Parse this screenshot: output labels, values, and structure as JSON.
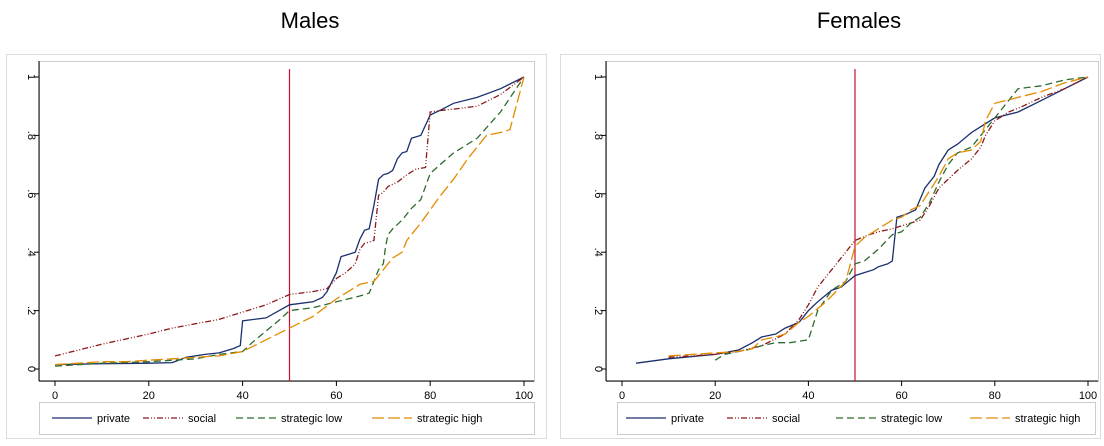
{
  "chart_data": [
    {
      "type": "line",
      "title": "Males",
      "xlim": [
        0,
        100
      ],
      "ylim": [
        0,
        1
      ],
      "xticks": [
        0,
        20,
        40,
        60,
        80,
        100
      ],
      "yticks": [
        0,
        0.2,
        0.4,
        0.6,
        0.8,
        1
      ],
      "xtick_labels": [
        "0",
        "20",
        "40",
        "60",
        "80",
        "100"
      ],
      "ytick_labels": [
        "0",
        ".2",
        ".4",
        ".6",
        ".8",
        "1"
      ],
      "reference_line_x": 50,
      "legend": "bottom",
      "series": [
        {
          "name": "private",
          "color": "#1a2f6e",
          "dash": "",
          "points": [
            [
              0,
              0.015
            ],
            [
              10,
              0.018
            ],
            [
              20,
              0.02
            ],
            [
              25,
              0.022
            ],
            [
              28,
              0.04
            ],
            [
              32,
              0.05
            ],
            [
              35,
              0.055
            ],
            [
              38,
              0.07
            ],
            [
              39.5,
              0.08
            ],
            [
              40,
              0.165
            ],
            [
              45,
              0.175
            ],
            [
              50,
              0.22
            ],
            [
              55,
              0.23
            ],
            [
              57,
              0.245
            ],
            [
              58,
              0.265
            ],
            [
              60,
              0.33
            ],
            [
              61,
              0.385
            ],
            [
              63,
              0.395
            ],
            [
              64,
              0.4
            ],
            [
              65,
              0.445
            ],
            [
              66,
              0.475
            ],
            [
              67,
              0.48
            ],
            [
              68,
              0.56
            ],
            [
              69,
              0.65
            ],
            [
              70,
              0.665
            ],
            [
              71,
              0.67
            ],
            [
              72,
              0.68
            ],
            [
              73,
              0.72
            ],
            [
              74,
              0.74
            ],
            [
              75,
              0.745
            ],
            [
              76,
              0.79
            ],
            [
              78,
              0.8
            ],
            [
              80,
              0.87
            ],
            [
              82,
              0.885
            ],
            [
              85,
              0.91
            ],
            [
              90,
              0.93
            ],
            [
              95,
              0.96
            ],
            [
              100,
              1.0
            ]
          ]
        },
        {
          "name": "social",
          "color": "#8b1a1a",
          "dash": "6,2,1,2,1,2",
          "points": [
            [
              0,
              0.045
            ],
            [
              10,
              0.085
            ],
            [
              20,
              0.12
            ],
            [
              25,
              0.14
            ],
            [
              30,
              0.155
            ],
            [
              35,
              0.17
            ],
            [
              40,
              0.195
            ],
            [
              45,
              0.22
            ],
            [
              50,
              0.255
            ],
            [
              55,
              0.265
            ],
            [
              58,
              0.275
            ],
            [
              60,
              0.31
            ],
            [
              62,
              0.33
            ],
            [
              64,
              0.36
            ],
            [
              65,
              0.41
            ],
            [
              66,
              0.43
            ],
            [
              67,
              0.435
            ],
            [
              68,
              0.44
            ],
            [
              69,
              0.595
            ],
            [
              70,
              0.605
            ],
            [
              71,
              0.625
            ],
            [
              73,
              0.64
            ],
            [
              75,
              0.665
            ],
            [
              77,
              0.685
            ],
            [
              79,
              0.69
            ],
            [
              80,
              0.88
            ],
            [
              82,
              0.885
            ],
            [
              85,
              0.89
            ],
            [
              90,
              0.9
            ],
            [
              95,
              0.94
            ],
            [
              100,
              1.0
            ]
          ]
        },
        {
          "name": "strategic low",
          "color": "#2e6b2e",
          "dash": "7,4",
          "points": [
            [
              0,
              0.01
            ],
            [
              10,
              0.02
            ],
            [
              20,
              0.025
            ],
            [
              25,
              0.03
            ],
            [
              30,
              0.035
            ],
            [
              35,
              0.05
            ],
            [
              40,
              0.06
            ],
            [
              42,
              0.09
            ],
            [
              45,
              0.13
            ],
            [
              48,
              0.17
            ],
            [
              50,
              0.2
            ],
            [
              55,
              0.21
            ],
            [
              60,
              0.23
            ],
            [
              65,
              0.25
            ],
            [
              67,
              0.26
            ],
            [
              68,
              0.3
            ],
            [
              69,
              0.34
            ],
            [
              70,
              0.36
            ],
            [
              70.5,
              0.42
            ],
            [
              71,
              0.46
            ],
            [
              72,
              0.48
            ],
            [
              74,
              0.51
            ],
            [
              76,
              0.55
            ],
            [
              78,
              0.58
            ],
            [
              80,
              0.67
            ],
            [
              85,
              0.74
            ],
            [
              90,
              0.79
            ],
            [
              95,
              0.88
            ],
            [
              100,
              1.0
            ]
          ]
        },
        {
          "name": "strategic high",
          "color": "#e38b00",
          "dash": "12,4",
          "points": [
            [
              0,
              0.015
            ],
            [
              5,
              0.02
            ],
            [
              10,
              0.025
            ],
            [
              15,
              0.025
            ],
            [
              20,
              0.03
            ],
            [
              25,
              0.035
            ],
            [
              30,
              0.04
            ],
            [
              35,
              0.045
            ],
            [
              40,
              0.06
            ],
            [
              45,
              0.1
            ],
            [
              50,
              0.14
            ],
            [
              55,
              0.18
            ],
            [
              60,
              0.24
            ],
            [
              65,
              0.29
            ],
            [
              68,
              0.3
            ],
            [
              70,
              0.34
            ],
            [
              72,
              0.38
            ],
            [
              74,
              0.4
            ],
            [
              75,
              0.44
            ],
            [
              76,
              0.46
            ],
            [
              78,
              0.5
            ],
            [
              80,
              0.545
            ],
            [
              82,
              0.59
            ],
            [
              85,
              0.65
            ],
            [
              88,
              0.72
            ],
            [
              90,
              0.76
            ],
            [
              92,
              0.8
            ],
            [
              95,
              0.81
            ],
            [
              97,
              0.82
            ],
            [
              100,
              1.0
            ]
          ]
        }
      ]
    },
    {
      "type": "line",
      "title": "Females",
      "xlim": [
        0,
        100
      ],
      "ylim": [
        0,
        1
      ],
      "xticks": [
        0,
        20,
        40,
        60,
        80,
        100
      ],
      "yticks": [
        0,
        0.2,
        0.4,
        0.6,
        0.8,
        1
      ],
      "xtick_labels": [
        "0",
        "20",
        "40",
        "60",
        "80",
        "100"
      ],
      "ytick_labels": [
        "0",
        ".2",
        ".4",
        ".6",
        ".8",
        "1"
      ],
      "reference_line_x": 50,
      "legend": "bottom",
      "series": [
        {
          "name": "private",
          "color": "#1a2f6e",
          "dash": "",
          "points": [
            [
              3,
              0.02
            ],
            [
              10,
              0.035
            ],
            [
              20,
              0.05
            ],
            [
              25,
              0.065
            ],
            [
              28,
              0.09
            ],
            [
              30,
              0.11
            ],
            [
              33,
              0.12
            ],
            [
              35,
              0.14
            ],
            [
              38,
              0.16
            ],
            [
              40,
              0.2
            ],
            [
              42,
              0.23
            ],
            [
              45,
              0.27
            ],
            [
              47,
              0.28
            ],
            [
              50,
              0.32
            ],
            [
              52,
              0.33
            ],
            [
              54,
              0.34
            ],
            [
              55,
              0.35
            ],
            [
              57,
              0.36
            ],
            [
              58,
              0.37
            ],
            [
              59,
              0.52
            ],
            [
              61,
              0.53
            ],
            [
              63,
              0.545
            ],
            [
              65,
              0.62
            ],
            [
              67,
              0.66
            ],
            [
              68,
              0.7
            ],
            [
              70,
              0.75
            ],
            [
              72,
              0.77
            ],
            [
              75,
              0.81
            ],
            [
              78,
              0.84
            ],
            [
              80,
              0.86
            ],
            [
              85,
              0.88
            ],
            [
              90,
              0.92
            ],
            [
              95,
              0.96
            ],
            [
              100,
              1.0
            ]
          ]
        },
        {
          "name": "social",
          "color": "#8b1a1a",
          "dash": "6,2,1,2,1,2",
          "points": [
            [
              10,
              0.04
            ],
            [
              20,
              0.05
            ],
            [
              25,
              0.06
            ],
            [
              30,
              0.08
            ],
            [
              35,
              0.12
            ],
            [
              38,
              0.17
            ],
            [
              40,
              0.22
            ],
            [
              42,
              0.28
            ],
            [
              45,
              0.34
            ],
            [
              48,
              0.4
            ],
            [
              50,
              0.44
            ],
            [
              53,
              0.46
            ],
            [
              55,
              0.47
            ],
            [
              58,
              0.48
            ],
            [
              60,
              0.49
            ],
            [
              62,
              0.5
            ],
            [
              64,
              0.51
            ],
            [
              66,
              0.56
            ],
            [
              68,
              0.62
            ],
            [
              70,
              0.65
            ],
            [
              72,
              0.68
            ],
            [
              75,
              0.72
            ],
            [
              77,
              0.76
            ],
            [
              78,
              0.8
            ],
            [
              80,
              0.85
            ],
            [
              83,
              0.88
            ],
            [
              86,
              0.9
            ],
            [
              90,
              0.93
            ],
            [
              95,
              0.96
            ],
            [
              100,
              1.0
            ]
          ]
        },
        {
          "name": "strategic low",
          "color": "#2e6b2e",
          "dash": "7,4",
          "points": [
            [
              20,
              0.03
            ],
            [
              22,
              0.05
            ],
            [
              25,
              0.06
            ],
            [
              28,
              0.07
            ],
            [
              30,
              0.08
            ],
            [
              33,
              0.09
            ],
            [
              36,
              0.09
            ],
            [
              40,
              0.1
            ],
            [
              42,
              0.2
            ],
            [
              45,
              0.27
            ],
            [
              48,
              0.3
            ],
            [
              50,
              0.36
            ],
            [
              52,
              0.37
            ],
            [
              55,
              0.41
            ],
            [
              58,
              0.46
            ],
            [
              60,
              0.47
            ],
            [
              62,
              0.5
            ],
            [
              64,
              0.52
            ],
            [
              66,
              0.57
            ],
            [
              68,
              0.64
            ],
            [
              69,
              0.67
            ],
            [
              70,
              0.7
            ],
            [
              72,
              0.74
            ],
            [
              75,
              0.76
            ],
            [
              78,
              0.82
            ],
            [
              80,
              0.86
            ],
            [
              82,
              0.9
            ],
            [
              85,
              0.96
            ],
            [
              90,
              0.97
            ],
            [
              95,
              0.99
            ],
            [
              100,
              1.0
            ]
          ]
        },
        {
          "name": "strategic high",
          "color": "#e38b00",
          "dash": "12,4",
          "points": [
            [
              10,
              0.045
            ],
            [
              15,
              0.05
            ],
            [
              20,
              0.055
            ],
            [
              25,
              0.06
            ],
            [
              28,
              0.07
            ],
            [
              30,
              0.1
            ],
            [
              33,
              0.11
            ],
            [
              35,
              0.12
            ],
            [
              38,
              0.16
            ],
            [
              40,
              0.18
            ],
            [
              43,
              0.22
            ],
            [
              45,
              0.25
            ],
            [
              48,
              0.3
            ],
            [
              50,
              0.42
            ],
            [
              52,
              0.45
            ],
            [
              55,
              0.48
            ],
            [
              58,
              0.51
            ],
            [
              60,
              0.52
            ],
            [
              62,
              0.545
            ],
            [
              64,
              0.56
            ],
            [
              66,
              0.61
            ],
            [
              68,
              0.66
            ],
            [
              70,
              0.72
            ],
            [
              72,
              0.74
            ],
            [
              75,
              0.75
            ],
            [
              77,
              0.78
            ],
            [
              78,
              0.85
            ],
            [
              80,
              0.91
            ],
            [
              85,
              0.93
            ],
            [
              90,
              0.95
            ],
            [
              95,
              0.98
            ],
            [
              100,
              1.0
            ]
          ]
        }
      ]
    }
  ]
}
